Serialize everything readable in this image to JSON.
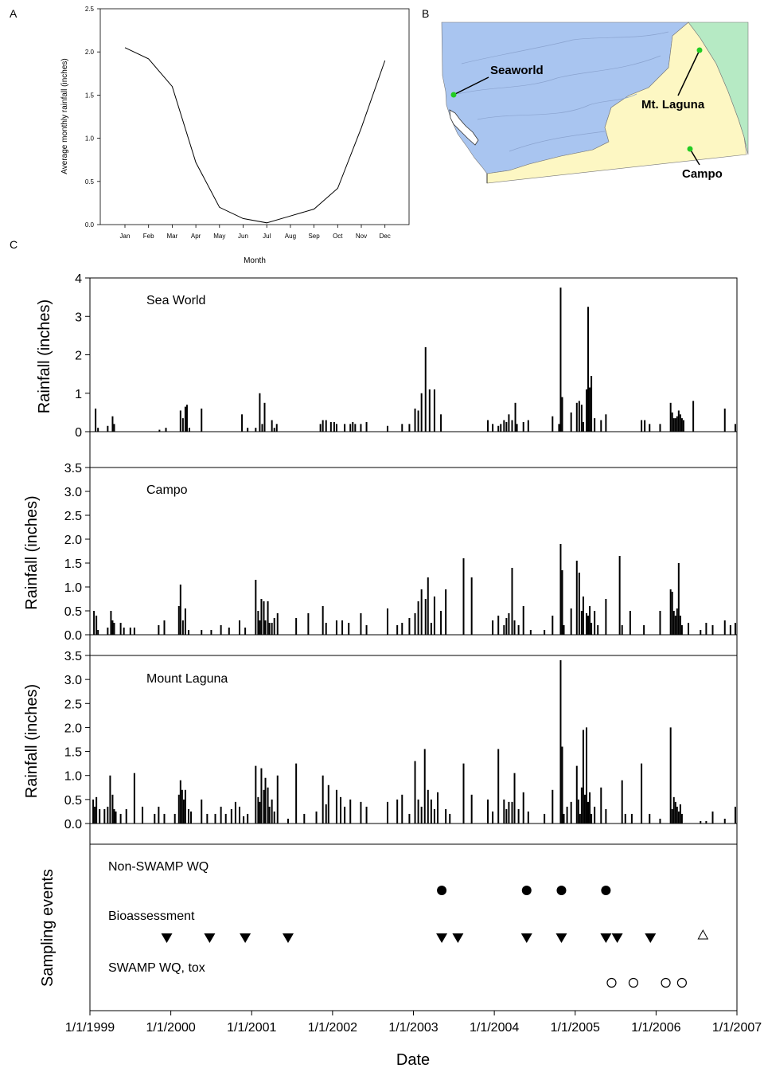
{
  "panels": {
    "a": "A",
    "b": "B",
    "c": "C"
  },
  "chart_data": [
    {
      "type": "line",
      "panel": "A",
      "xlabel": "Month",
      "ylabel": "Average monthly rainfall (inches)",
      "categories": [
        "Jan",
        "Feb",
        "Mar",
        "Apr",
        "May",
        "Jun",
        "Jul",
        "Aug",
        "Sep",
        "Oct",
        "Nov",
        "Dec"
      ],
      "values": [
        2.05,
        1.92,
        1.6,
        0.72,
        0.2,
        0.07,
        0.02,
        0.1,
        0.18,
        0.42,
        1.12,
        1.9
      ],
      "yticks": [
        "0.0",
        "0.5",
        "1.0",
        "1.5",
        "2.0",
        "2.5"
      ],
      "ylim": [
        0,
        2.5
      ],
      "grid": false
    },
    {
      "type": "bar",
      "panel": "C",
      "xlabel": "Date",
      "ylabel": "Rainfall (inches)",
      "xticks": [
        "1/1/1999",
        "1/1/2000",
        "1/1/2001",
        "1/1/2002",
        "1/1/2003",
        "1/1/2004",
        "1/1/2005",
        "1/1/2006",
        "1/1/2007"
      ],
      "xlim": [
        1999.0,
        2007.0
      ],
      "grid": false,
      "stations": [
        {
          "label": "Sea World",
          "ylim": [
            0,
            4
          ],
          "yticks": [
            "0",
            "1",
            "2",
            "3",
            "4"
          ],
          "x": [
            1999.07,
            1999.1,
            1999.22,
            1999.28,
            1999.3,
            1999.86,
            1999.94,
            2000.12,
            2000.15,
            2000.18,
            2000.2,
            2000.23,
            2000.38,
            2000.88,
            2000.95,
            2001.05,
            2001.1,
            2001.13,
            2001.16,
            2001.25,
            2001.28,
            2001.31,
            2001.85,
            2001.88,
            2001.92,
            2001.98,
            2002.02,
            2002.05,
            2002.15,
            2002.22,
            2002.25,
            2002.28,
            2002.35,
            2002.42,
            2002.68,
            2002.86,
            2002.95,
            2003.02,
            2003.06,
            2003.1,
            2003.15,
            2003.2,
            2003.26,
            2003.34,
            2003.92,
            2003.98,
            2004.05,
            2004.08,
            2004.12,
            2004.15,
            2004.18,
            2004.22,
            2004.26,
            2004.28,
            2004.36,
            2004.42,
            2004.72,
            2004.8,
            2004.82,
            2004.84,
            2004.95,
            2005.02,
            2005.05,
            2005.08,
            2005.1,
            2005.14,
            2005.16,
            2005.18,
            2005.2,
            2005.24,
            2005.32,
            2005.38,
            2005.82,
            2005.86,
            2005.92,
            2006.05,
            2006.18,
            2006.2,
            2006.22,
            2006.24,
            2006.26,
            2006.28,
            2006.3,
            2006.32,
            2006.34,
            2006.46,
            2006.85,
            2006.98
          ],
          "values": [
            0.6,
            0.1,
            0.15,
            0.4,
            0.2,
            0.05,
            0.1,
            0.55,
            0.35,
            0.65,
            0.7,
            0.1,
            0.6,
            0.45,
            0.1,
            0.1,
            1.0,
            0.2,
            0.75,
            0.3,
            0.1,
            0.2,
            0.2,
            0.3,
            0.3,
            0.25,
            0.25,
            0.2,
            0.2,
            0.2,
            0.25,
            0.2,
            0.2,
            0.25,
            0.15,
            0.2,
            0.2,
            0.6,
            0.55,
            1.0,
            2.2,
            1.1,
            1.1,
            0.45,
            0.3,
            0.2,
            0.15,
            0.2,
            0.3,
            0.25,
            0.45,
            0.3,
            0.75,
            0.2,
            0.25,
            0.3,
            0.4,
            0.2,
            3.75,
            0.9,
            0.5,
            0.75,
            0.8,
            0.7,
            0.25,
            1.1,
            3.25,
            1.15,
            1.45,
            0.35,
            0.3,
            0.45,
            0.3,
            0.3,
            0.2,
            0.2,
            0.75,
            0.5,
            0.35,
            0.35,
            0.4,
            0.55,
            0.45,
            0.35,
            0.3,
            0.8,
            0.6,
            0.2
          ]
        },
        {
          "label": "Campo",
          "ylim": [
            0,
            3.5
          ],
          "yticks": [
            "0.0",
            "0.5",
            "1.0",
            "1.5",
            "2.0",
            "2.5",
            "3.0",
            "3.5"
          ],
          "x": [
            1999.05,
            1999.08,
            1999.1,
            1999.22,
            1999.26,
            1999.28,
            1999.3,
            1999.38,
            1999.42,
            1999.5,
            1999.55,
            1999.85,
            1999.92,
            2000.1,
            2000.12,
            2000.15,
            2000.18,
            2000.22,
            2000.38,
            2000.5,
            2000.62,
            2000.72,
            2000.85,
            2000.92,
            2001.05,
            2001.08,
            2001.1,
            2001.12,
            2001.15,
            2001.17,
            2001.2,
            2001.22,
            2001.25,
            2001.28,
            2001.32,
            2001.55,
            2001.7,
            2001.88,
            2001.92,
            2002.05,
            2002.12,
            2002.2,
            2002.35,
            2002.42,
            2002.68,
            2002.8,
            2002.86,
            2002.95,
            2003.02,
            2003.06,
            2003.1,
            2003.15,
            2003.18,
            2003.22,
            2003.26,
            2003.34,
            2003.4,
            2003.62,
            2003.72,
            2003.98,
            2004.05,
            2004.12,
            2004.15,
            2004.18,
            2004.22,
            2004.25,
            2004.3,
            2004.36,
            2004.45,
            2004.62,
            2004.72,
            2004.82,
            2004.84,
            2004.86,
            2004.95,
            2005.02,
            2005.05,
            2005.08,
            2005.1,
            2005.14,
            2005.16,
            2005.18,
            2005.2,
            2005.24,
            2005.28,
            2005.38,
            2005.55,
            2005.58,
            2005.68,
            2005.85,
            2006.05,
            2006.18,
            2006.2,
            2006.22,
            2006.24,
            2006.26,
            2006.28,
            2006.3,
            2006.32,
            2006.4,
            2006.55,
            2006.62,
            2006.7,
            2006.85,
            2006.92,
            2006.98
          ],
          "values": [
            0.5,
            0.4,
            0.1,
            0.15,
            0.5,
            0.3,
            0.25,
            0.25,
            0.15,
            0.15,
            0.15,
            0.2,
            0.3,
            0.6,
            1.05,
            0.3,
            0.55,
            0.1,
            0.1,
            0.1,
            0.2,
            0.15,
            0.3,
            0.15,
            1.15,
            0.5,
            0.3,
            0.75,
            0.7,
            0.3,
            0.7,
            0.25,
            0.25,
            0.35,
            0.45,
            0.35,
            0.45,
            0.6,
            0.25,
            0.3,
            0.3,
            0.25,
            0.45,
            0.2,
            0.55,
            0.2,
            0.25,
            0.35,
            0.45,
            0.7,
            0.95,
            0.75,
            1.2,
            0.25,
            0.8,
            0.5,
            0.95,
            1.6,
            1.2,
            0.3,
            0.4,
            0.2,
            0.35,
            0.45,
            1.4,
            0.3,
            0.2,
            0.6,
            0.1,
            0.1,
            0.4,
            1.9,
            1.35,
            0.2,
            0.55,
            1.55,
            1.3,
            0.5,
            0.8,
            0.45,
            0.4,
            0.6,
            0.25,
            0.5,
            0.2,
            0.75,
            1.65,
            0.2,
            0.5,
            0.2,
            0.5,
            0.95,
            0.9,
            0.5,
            0.4,
            0.55,
            1.5,
            0.4,
            0.2,
            0.25,
            0.1,
            0.25,
            0.2,
            0.3,
            0.2,
            0.25
          ]
        },
        {
          "label": "Mount Laguna",
          "ylim": [
            0,
            3.5
          ],
          "yticks": [
            "0.0",
            "0.5",
            "1.0",
            "1.5",
            "2.0",
            "2.5",
            "3.0",
            "3.5"
          ],
          "x": [
            1999.04,
            1999.06,
            1999.08,
            1999.12,
            1999.18,
            1999.22,
            1999.25,
            1999.28,
            1999.3,
            1999.32,
            1999.38,
            1999.45,
            1999.55,
            1999.65,
            1999.8,
            1999.85,
            1999.92,
            2000.05,
            2000.1,
            2000.12,
            2000.14,
            2000.16,
            2000.18,
            2000.22,
            2000.25,
            2000.38,
            2000.45,
            2000.55,
            2000.62,
            2000.68,
            2000.75,
            2000.8,
            2000.85,
            2000.9,
            2000.95,
            2001.05,
            2001.08,
            2001.1,
            2001.12,
            2001.15,
            2001.17,
            2001.2,
            2001.22,
            2001.25,
            2001.28,
            2001.32,
            2001.45,
            2001.55,
            2001.65,
            2001.8,
            2001.88,
            2001.92,
            2001.95,
            2002.05,
            2002.1,
            2002.15,
            2002.22,
            2002.35,
            2002.42,
            2002.68,
            2002.8,
            2002.86,
            2002.95,
            2003.02,
            2003.06,
            2003.1,
            2003.14,
            2003.18,
            2003.22,
            2003.26,
            2003.3,
            2003.4,
            2003.45,
            2003.62,
            2003.72,
            2003.92,
            2003.98,
            2004.05,
            2004.12,
            2004.15,
            2004.18,
            2004.22,
            2004.25,
            2004.3,
            2004.36,
            2004.42,
            2004.62,
            2004.72,
            2004.82,
            2004.84,
            2004.86,
            2004.9,
            2004.95,
            2005.02,
            2005.04,
            2005.06,
            2005.08,
            2005.1,
            2005.12,
            2005.14,
            2005.16,
            2005.18,
            2005.2,
            2005.24,
            2005.32,
            2005.38,
            2005.58,
            2005.62,
            2005.7,
            2005.82,
            2005.92,
            2006.05,
            2006.18,
            2006.2,
            2006.22,
            2006.24,
            2006.26,
            2006.28,
            2006.3,
            2006.32,
            2006.55,
            2006.62,
            2006.7,
            2006.85,
            2006.98
          ],
          "values": [
            0.5,
            0.35,
            0.55,
            0.3,
            0.3,
            0.35,
            1.0,
            0.6,
            0.3,
            0.25,
            0.2,
            0.3,
            1.05,
            0.35,
            0.2,
            0.35,
            0.2,
            0.2,
            0.6,
            0.9,
            0.7,
            0.5,
            0.7,
            0.3,
            0.25,
            0.5,
            0.2,
            0.2,
            0.35,
            0.2,
            0.3,
            0.45,
            0.35,
            0.15,
            0.2,
            1.2,
            0.55,
            0.45,
            1.15,
            0.7,
            0.95,
            0.75,
            0.35,
            0.5,
            0.25,
            1.0,
            0.1,
            1.25,
            0.2,
            0.25,
            1.0,
            0.4,
            0.8,
            0.7,
            0.55,
            0.35,
            0.5,
            0.45,
            0.35,
            0.45,
            0.5,
            0.6,
            0.2,
            1.3,
            0.5,
            0.35,
            1.55,
            0.7,
            0.5,
            0.3,
            0.65,
            0.3,
            0.2,
            1.25,
            0.6,
            0.5,
            0.25,
            1.55,
            0.5,
            0.3,
            0.45,
            0.45,
            1.05,
            0.3,
            0.65,
            0.25,
            0.2,
            0.7,
            3.4,
            1.6,
            0.2,
            0.35,
            0.45,
            1.2,
            0.5,
            0.2,
            0.75,
            1.95,
            0.6,
            2.0,
            0.45,
            0.65,
            0.2,
            0.35,
            0.75,
            0.3,
            0.9,
            0.2,
            0.2,
            1.25,
            0.2,
            0.1,
            2.0,
            0.3,
            0.55,
            0.45,
            0.35,
            0.25,
            0.4,
            0.2,
            0.05,
            0.05,
            0.25,
            0.1,
            0.35
          ]
        }
      ],
      "sampling_events": {
        "ylabel": "Sampling events",
        "groups": [
          {
            "label": "Non-SWAMP WQ",
            "marker": "filled-circle",
            "x": [
              2003.35,
              2004.4,
              2004.83,
              2005.38
            ]
          },
          {
            "label": "Bioassessment",
            "marker": "filled-down-triangle",
            "x": [
              1999.95,
              2000.48,
              2000.92,
              2001.45,
              2003.35,
              2003.55,
              2004.4,
              2004.83,
              2005.38,
              2005.52,
              2005.93
            ],
            "hollow_up_triangle_x": [
              2006.58
            ]
          },
          {
            "label": "SWAMP WQ, tox",
            "marker": "open-circle",
            "x": [
              2005.45,
              2005.72,
              2006.12,
              2006.32
            ]
          }
        ]
      }
    }
  ],
  "map": {
    "labels": {
      "seaworld": "Seaworld",
      "mtlaguna": "Mt. Laguna",
      "campo": "Campo"
    },
    "colors": {
      "sea": "#ffffff",
      "basin": "#a9c5f0",
      "yellow": "#fdf7c3",
      "green": "#b6eac4",
      "site": "#22cc22"
    }
  }
}
